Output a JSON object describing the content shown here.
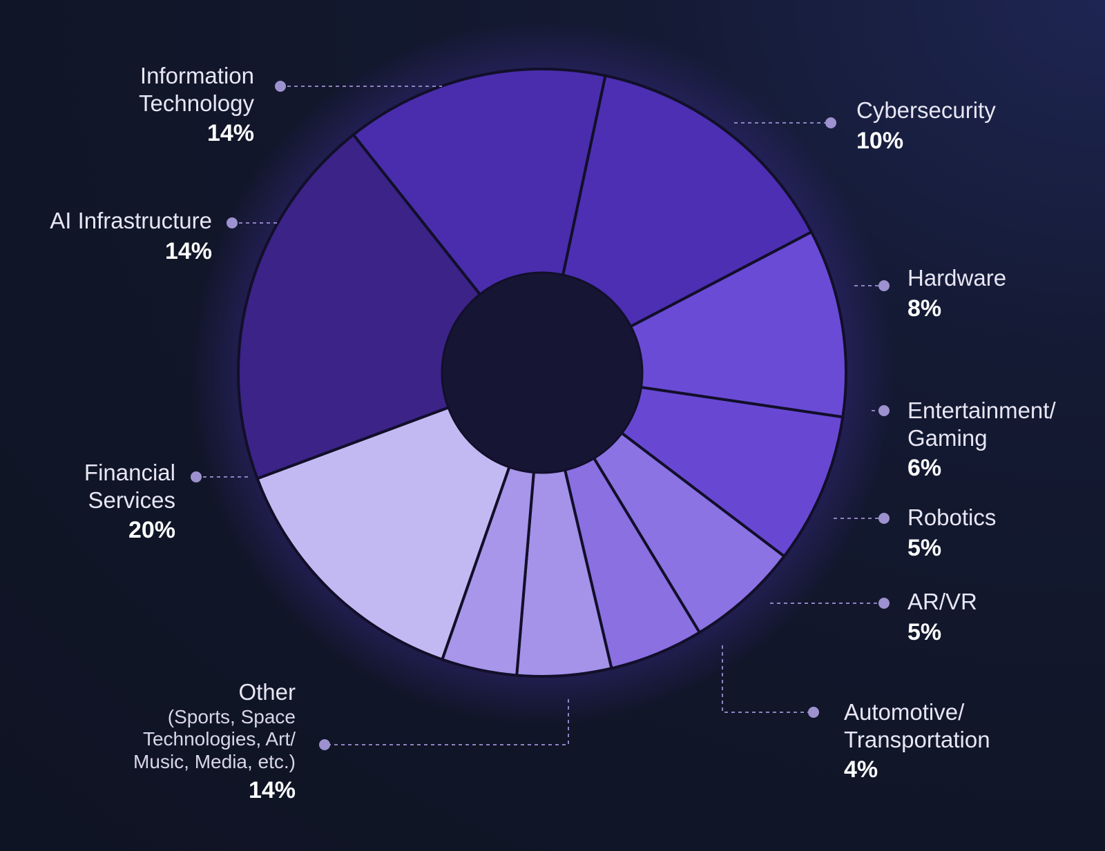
{
  "chart_data": {
    "type": "pie",
    "donut": true,
    "legend": "none",
    "slices": [
      {
        "label": "Information Technology",
        "value": 14,
        "value_label": "14%",
        "color": "#4c2fb2"
      },
      {
        "label": "Cybersecurity",
        "value": 10,
        "value_label": "10%",
        "color": "#6a4bd6"
      },
      {
        "label": "Hardware",
        "value": 8,
        "value_label": "8%",
        "color": "#6848d3"
      },
      {
        "label": "Entertainment/ Gaming",
        "value": 6,
        "value_label": "6%",
        "color": "#8b73e3"
      },
      {
        "label": "Robotics",
        "value": 5,
        "value_label": "5%",
        "color": "#8a70e1"
      },
      {
        "label": "AR/VR",
        "value": 5,
        "value_label": "5%",
        "color": "#a592e9"
      },
      {
        "label": "Automotive/ Transportation",
        "value": 4,
        "value_label": "4%",
        "color": "#a796e9"
      },
      {
        "label": "Other",
        "value": 14,
        "value_label": "14%",
        "color": "#c3b9f2"
      },
      {
        "label": "Financial Services",
        "value": 20,
        "value_label": "20%",
        "color": "#3b2388"
      },
      {
        "label": "AI Infrastructure",
        "value": 14,
        "value_label": "14%",
        "color": "#4a2dad"
      }
    ]
  },
  "labels": {
    "it": {
      "line1": "Information",
      "line2": "Technology",
      "pct": "14%"
    },
    "cyber": {
      "line1": "Cybersecurity",
      "pct": "10%"
    },
    "hardware": {
      "line1": "Hardware",
      "pct": "8%"
    },
    "ent": {
      "line1": "Entertainment/",
      "line2": "Gaming",
      "pct": "6%"
    },
    "robotics": {
      "line1": "Robotics",
      "pct": "5%"
    },
    "arvr": {
      "line1": "AR/VR",
      "pct": "5%"
    },
    "auto": {
      "line1": "Automotive/",
      "line2": "Transportation",
      "pct": "4%"
    },
    "other": {
      "line1": "Other",
      "sub1": "(Sports, Space",
      "sub2": "Technologies, Art/",
      "sub3": "Music, Media, etc.)",
      "pct": "14%"
    },
    "fin": {
      "line1": "Financial",
      "line2": "Services",
      "pct": "20%"
    },
    "ai": {
      "line1": "AI Infrastructure",
      "pct": "14%"
    }
  },
  "colors": {
    "background": "#111629",
    "connector": "#8f84c4",
    "center_hole": "#161634",
    "slice_stroke": "#120f2a"
  }
}
